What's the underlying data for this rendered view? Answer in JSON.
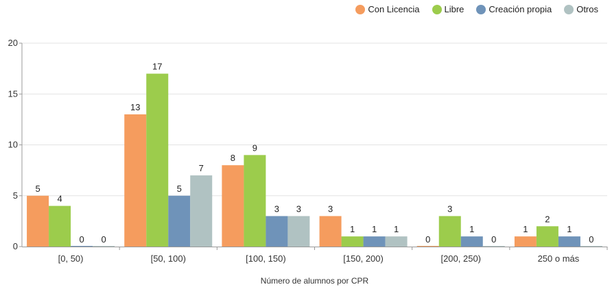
{
  "chart_data": {
    "type": "bar",
    "categories": [
      "[0, 50)",
      "[50, 100)",
      "[100, 150)",
      "[150, 200)",
      "[200, 250)",
      "250 o más"
    ],
    "series": [
      {
        "name": "Con Licencia",
        "color": "#f59c5e",
        "values": [
          5,
          13,
          8,
          3,
          0,
          1
        ]
      },
      {
        "name": "Libre",
        "color": "#9ccc4c",
        "values": [
          4,
          17,
          9,
          1,
          3,
          2
        ]
      },
      {
        "name": "Creación propia",
        "color": "#6f93b9",
        "values": [
          0,
          5,
          3,
          1,
          1,
          1
        ]
      },
      {
        "name": "Otros",
        "color": "#b0c2c2",
        "values": [
          0,
          7,
          3,
          1,
          0,
          0
        ]
      }
    ],
    "xlabel": "Número de alumnos por CPR",
    "ylabel": "",
    "ylim": [
      0,
      20
    ],
    "yticks": [
      0,
      5,
      10,
      15,
      20
    ],
    "grid": true,
    "legend_position": "top-right"
  }
}
